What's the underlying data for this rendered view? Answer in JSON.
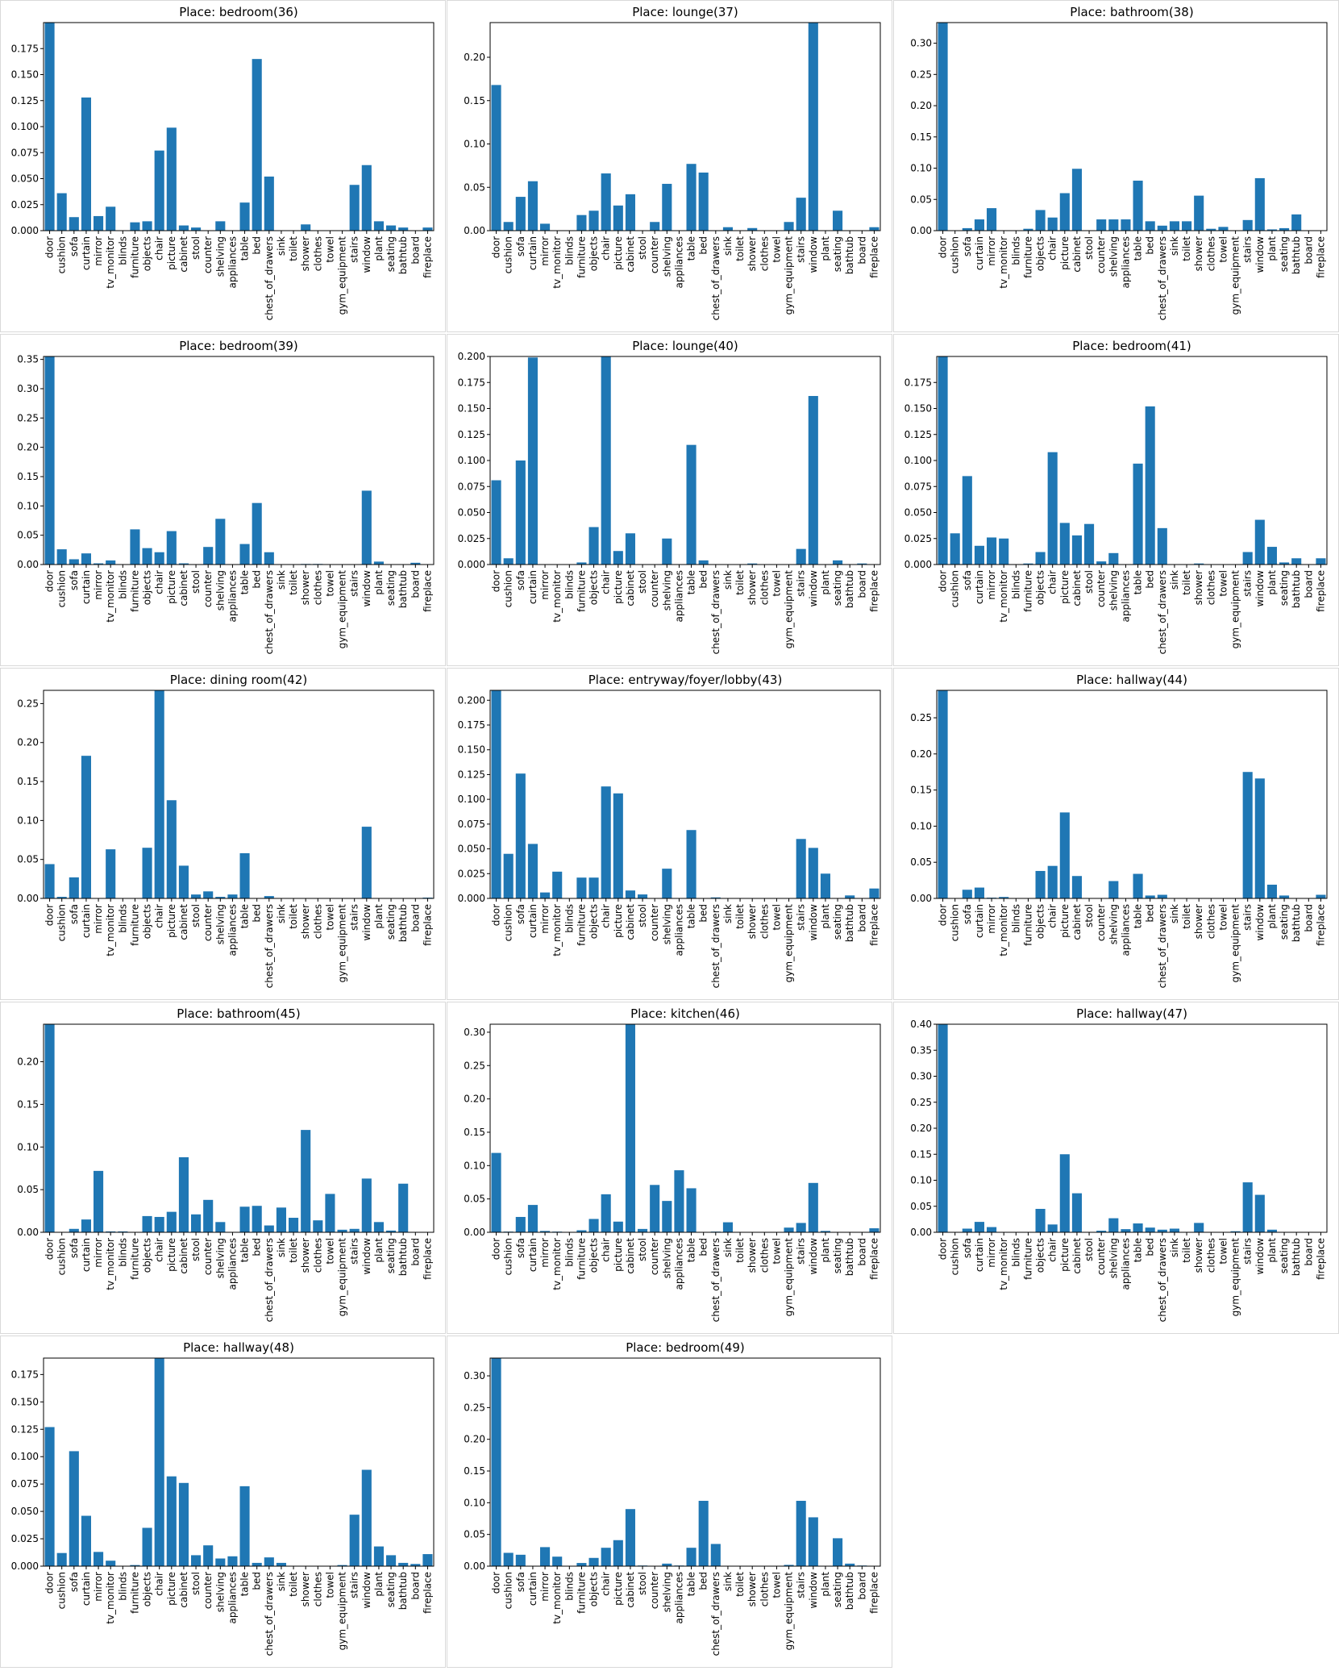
{
  "chart_data": [
    {
      "type": "bar",
      "title": "Place: bedroom(36)",
      "categories": [
        "door",
        "cushion",
        "sofa",
        "curtain",
        "mirror",
        "tv_monitor",
        "blinds",
        "furniture",
        "objects",
        "chair",
        "picture",
        "cabinet",
        "stool",
        "counter",
        "shelving",
        "appliances",
        "table",
        "bed",
        "chest_of_drawers",
        "sink",
        "toilet",
        "shower",
        "clothes",
        "towel",
        "gym_equipment",
        "stairs",
        "window",
        "plant",
        "seating",
        "bathtub",
        "board",
        "fireplace"
      ],
      "values": [
        0.2,
        0.036,
        0.013,
        0.128,
        0.014,
        0.023,
        0,
        0.008,
        0.009,
        0.077,
        0.099,
        0.005,
        0.003,
        0,
        0.009,
        0,
        0.027,
        0.165,
        0.052,
        0,
        0,
        0.006,
        0,
        0,
        0,
        0.044,
        0.063,
        0.009,
        0.005,
        0.003,
        0,
        0.003
      ],
      "yticks": [
        "0.000",
        "0.025",
        "0.050",
        "0.075",
        "0.100",
        "0.125",
        "0.150",
        "0.175"
      ],
      "ylim": [
        0,
        0.2
      ],
      "color": "#1f77b4"
    },
    {
      "type": "bar",
      "title": "Place: lounge(37)",
      "categories": [
        "door",
        "cushion",
        "sofa",
        "curtain",
        "mirror",
        "tv_monitor",
        "blinds",
        "furniture",
        "objects",
        "chair",
        "picture",
        "cabinet",
        "stool",
        "counter",
        "shelving",
        "appliances",
        "table",
        "bed",
        "chest_of_drawers",
        "sink",
        "toilet",
        "shower",
        "clothes",
        "towel",
        "gym_equipment",
        "stairs",
        "window",
        "plant",
        "seating",
        "bathtub",
        "board",
        "fireplace"
      ],
      "values": [
        0.168,
        0.01,
        0.039,
        0.057,
        0.008,
        0,
        0,
        0.018,
        0.023,
        0.066,
        0.029,
        0.042,
        0,
        0.01,
        0.054,
        0,
        0.077,
        0.067,
        0,
        0.004,
        0,
        0.003,
        0,
        0,
        0.01,
        0.038,
        0.24,
        0,
        0.023,
        0,
        0,
        0.004
      ],
      "yticks": [
        "0.00",
        "0.05",
        "0.10",
        "0.15",
        "0.20"
      ],
      "ylim": [
        0,
        0.24
      ],
      "color": "#1f77b4"
    },
    {
      "type": "bar",
      "title": "Place: bathroom(38)",
      "categories": [
        "door",
        "cushion",
        "sofa",
        "curtain",
        "mirror",
        "tv_monitor",
        "blinds",
        "furniture",
        "objects",
        "chair",
        "picture",
        "cabinet",
        "stool",
        "counter",
        "shelving",
        "appliances",
        "table",
        "bed",
        "chest_of_drawers",
        "sink",
        "toilet",
        "shower",
        "clothes",
        "towel",
        "gym_equipment",
        "stairs",
        "window",
        "plant",
        "seating",
        "bathtub",
        "board",
        "fireplace"
      ],
      "values": [
        0.333,
        0,
        0.004,
        0.018,
        0.036,
        0,
        0,
        0.003,
        0.033,
        0.021,
        0.06,
        0.099,
        0,
        0.018,
        0.018,
        0.018,
        0.08,
        0.015,
        0.008,
        0.015,
        0.015,
        0.056,
        0.003,
        0.006,
        0,
        0.017,
        0.084,
        0.002,
        0.004,
        0.026,
        0,
        0
      ],
      "yticks": [
        "0.00",
        "0.05",
        "0.10",
        "0.15",
        "0.20",
        "0.25",
        "0.30"
      ],
      "ylim": [
        0,
        0.333
      ],
      "color": "#1f77b4"
    },
    {
      "type": "bar",
      "title": "Place: bedroom(39)",
      "categories": [
        "door",
        "cushion",
        "sofa",
        "curtain",
        "mirror",
        "tv_monitor",
        "blinds",
        "furniture",
        "objects",
        "chair",
        "picture",
        "cabinet",
        "stool",
        "counter",
        "shelving",
        "appliances",
        "table",
        "bed",
        "chest_of_drawers",
        "sink",
        "toilet",
        "shower",
        "clothes",
        "towel",
        "gym_equipment",
        "stairs",
        "window",
        "plant",
        "seating",
        "bathtub",
        "board",
        "fireplace"
      ],
      "values": [
        0.355,
        0.026,
        0.009,
        0.019,
        0.002,
        0.007,
        0,
        0.06,
        0.028,
        0.021,
        0.057,
        0.002,
        0,
        0.03,
        0.078,
        0,
        0.035,
        0.105,
        0.021,
        0,
        0,
        0.001,
        0.001,
        0,
        0,
        0,
        0.126,
        0.005,
        0,
        0,
        0.003,
        0
      ],
      "yticks": [
        "0.00",
        "0.05",
        "0.10",
        "0.15",
        "0.20",
        "0.25",
        "0.30",
        "0.35"
      ],
      "ylim": [
        0,
        0.355
      ],
      "color": "#1f77b4"
    },
    {
      "type": "bar",
      "title": "Place: lounge(40)",
      "categories": [
        "door",
        "cushion",
        "sofa",
        "curtain",
        "mirror",
        "tv_monitor",
        "blinds",
        "furniture",
        "objects",
        "chair",
        "picture",
        "cabinet",
        "stool",
        "counter",
        "shelving",
        "appliances",
        "table",
        "bed",
        "chest_of_drawers",
        "sink",
        "toilet",
        "shower",
        "clothes",
        "towel",
        "gym_equipment",
        "stairs",
        "window",
        "plant",
        "seating",
        "bathtub",
        "board",
        "fireplace"
      ],
      "values": [
        0.081,
        0.006,
        0.1,
        0.199,
        0,
        0,
        0,
        0.002,
        0.036,
        0.2,
        0.013,
        0.03,
        0,
        0,
        0.025,
        0,
        0.115,
        0.004,
        0,
        0,
        0,
        0.001,
        0,
        0,
        0,
        0.015,
        0.162,
        0,
        0.004,
        0,
        0.001,
        0
      ],
      "yticks": [
        "0.000",
        "0.025",
        "0.050",
        "0.075",
        "0.100",
        "0.125",
        "0.150",
        "0.175",
        "0.200"
      ],
      "ylim": [
        0,
        0.2
      ],
      "color": "#1f77b4"
    },
    {
      "type": "bar",
      "title": "Place: bedroom(41)",
      "categories": [
        "door",
        "cushion",
        "sofa",
        "curtain",
        "mirror",
        "tv_monitor",
        "blinds",
        "furniture",
        "objects",
        "chair",
        "picture",
        "cabinet",
        "stool",
        "counter",
        "shelving",
        "appliances",
        "table",
        "bed",
        "chest_of_drawers",
        "sink",
        "toilet",
        "shower",
        "clothes",
        "towel",
        "gym_equipment",
        "stairs",
        "window",
        "plant",
        "seating",
        "bathtub",
        "board",
        "fireplace"
      ],
      "values": [
        0.2,
        0.03,
        0.085,
        0.018,
        0.026,
        0.025,
        0,
        0.001,
        0.012,
        0.108,
        0.04,
        0.028,
        0.039,
        0.003,
        0.011,
        0,
        0.097,
        0.152,
        0.035,
        0,
        0,
        0.001,
        0,
        0,
        0,
        0.012,
        0.043,
        0.017,
        0.002,
        0.006,
        0,
        0.006
      ],
      "yticks": [
        "0.000",
        "0.025",
        "0.050",
        "0.075",
        "0.100",
        "0.125",
        "0.150",
        "0.175"
      ],
      "ylim": [
        0,
        0.2
      ],
      "color": "#1f77b4"
    },
    {
      "type": "bar",
      "title": "Place: dining room(42)",
      "categories": [
        "door",
        "cushion",
        "sofa",
        "curtain",
        "mirror",
        "tv_monitor",
        "blinds",
        "furniture",
        "objects",
        "chair",
        "picture",
        "cabinet",
        "stool",
        "counter",
        "shelving",
        "appliances",
        "table",
        "bed",
        "chest_of_drawers",
        "sink",
        "toilet",
        "shower",
        "clothes",
        "towel",
        "gym_equipment",
        "stairs",
        "window",
        "plant",
        "seating",
        "bathtub",
        "board",
        "fireplace"
      ],
      "values": [
        0.044,
        0.002,
        0.027,
        0.183,
        0,
        0.063,
        0,
        0,
        0.065,
        0.267,
        0.126,
        0.042,
        0.005,
        0.009,
        0.002,
        0.005,
        0.058,
        0,
        0.003,
        0,
        0,
        0,
        0,
        0,
        0,
        0,
        0.092,
        0,
        0,
        0,
        0,
        0.001
      ],
      "yticks": [
        "0.00",
        "0.05",
        "0.10",
        "0.15",
        "0.20",
        "0.25"
      ],
      "ylim": [
        0,
        0.267
      ],
      "color": "#1f77b4"
    },
    {
      "type": "bar",
      "title": "Place: entryway/foyer/lobby(43)",
      "categories": [
        "door",
        "cushion",
        "sofa",
        "curtain",
        "mirror",
        "tv_monitor",
        "blinds",
        "furniture",
        "objects",
        "chair",
        "picture",
        "cabinet",
        "stool",
        "counter",
        "shelving",
        "appliances",
        "table",
        "bed",
        "chest_of_drawers",
        "sink",
        "toilet",
        "shower",
        "clothes",
        "towel",
        "gym_equipment",
        "stairs",
        "window",
        "plant",
        "seating",
        "bathtub",
        "board",
        "fireplace"
      ],
      "values": [
        0.21,
        0.045,
        0.126,
        0.055,
        0.006,
        0.027,
        0,
        0.021,
        0.021,
        0.113,
        0.106,
        0.008,
        0.004,
        0,
        0.03,
        0,
        0.069,
        0,
        0.001,
        0,
        0,
        0,
        0,
        0,
        0,
        0.06,
        0.051,
        0.025,
        0,
        0.003,
        0,
        0.01
      ],
      "yticks": [
        "0.000",
        "0.025",
        "0.050",
        "0.075",
        "0.100",
        "0.125",
        "0.150",
        "0.175",
        "0.200"
      ],
      "ylim": [
        0,
        0.21
      ],
      "color": "#1f77b4"
    },
    {
      "type": "bar",
      "title": "Place: hallway(44)",
      "categories": [
        "door",
        "cushion",
        "sofa",
        "curtain",
        "mirror",
        "tv_monitor",
        "blinds",
        "furniture",
        "objects",
        "chair",
        "picture",
        "cabinet",
        "stool",
        "counter",
        "shelving",
        "appliances",
        "table",
        "bed",
        "chest_of_drawers",
        "sink",
        "toilet",
        "shower",
        "clothes",
        "towel",
        "gym_equipment",
        "stairs",
        "window",
        "plant",
        "seating",
        "bathtub",
        "board",
        "fireplace"
      ],
      "values": [
        0.288,
        0,
        0.012,
        0.015,
        0.001,
        0.002,
        0,
        0,
        0.038,
        0.045,
        0.119,
        0.031,
        0,
        0,
        0.024,
        0,
        0.034,
        0.004,
        0.005,
        0,
        0,
        0,
        0,
        0,
        0,
        0.175,
        0.166,
        0.019,
        0.004,
        0,
        0,
        0.005
      ],
      "yticks": [
        "0.00",
        "0.05",
        "0.10",
        "0.15",
        "0.20",
        "0.25"
      ],
      "ylim": [
        0,
        0.288
      ],
      "color": "#1f77b4"
    },
    {
      "type": "bar",
      "title": "Place: bathroom(45)",
      "categories": [
        "door",
        "cushion",
        "sofa",
        "curtain",
        "mirror",
        "tv_monitor",
        "blinds",
        "furniture",
        "objects",
        "chair",
        "picture",
        "cabinet",
        "stool",
        "counter",
        "shelving",
        "appliances",
        "table",
        "bed",
        "chest_of_drawers",
        "sink",
        "toilet",
        "shower",
        "clothes",
        "towel",
        "gym_equipment",
        "stairs",
        "window",
        "plant",
        "seating",
        "bathtub",
        "board",
        "fireplace"
      ],
      "values": [
        0.244,
        0,
        0.004,
        0.015,
        0.072,
        0.001,
        0.001,
        0,
        0.019,
        0.018,
        0.024,
        0.088,
        0.021,
        0.038,
        0.012,
        0,
        0.03,
        0.031,
        0.008,
        0.029,
        0.017,
        0.12,
        0.014,
        0.045,
        0.003,
        0.004,
        0.063,
        0.012,
        0.002,
        0.057,
        0,
        0
      ],
      "yticks": [
        "0.00",
        "0.05",
        "0.10",
        "0.15",
        "0.20"
      ],
      "ylim": [
        0,
        0.244
      ],
      "color": "#1f77b4"
    },
    {
      "type": "bar",
      "title": "Place: kitchen(46)",
      "categories": [
        "door",
        "cushion",
        "sofa",
        "curtain",
        "mirror",
        "tv_monitor",
        "blinds",
        "furniture",
        "objects",
        "chair",
        "picture",
        "cabinet",
        "stool",
        "counter",
        "shelving",
        "appliances",
        "table",
        "bed",
        "chest_of_drawers",
        "sink",
        "toilet",
        "shower",
        "clothes",
        "towel",
        "gym_equipment",
        "stairs",
        "window",
        "plant",
        "seating",
        "bathtub",
        "board",
        "fireplace"
      ],
      "values": [
        0.119,
        0.001,
        0.023,
        0.041,
        0.002,
        0.001,
        0,
        0.003,
        0.02,
        0.057,
        0.016,
        0.312,
        0.005,
        0.071,
        0.047,
        0.093,
        0.066,
        0,
        0.001,
        0.015,
        0,
        0,
        0,
        0,
        0.007,
        0.014,
        0.074,
        0.002,
        0,
        0,
        0,
        0.006
      ],
      "yticks": [
        "0.00",
        "0.05",
        "0.10",
        "0.15",
        "0.20",
        "0.25",
        "0.30"
      ],
      "ylim": [
        0,
        0.312
      ],
      "color": "#1f77b4"
    },
    {
      "type": "bar",
      "title": "Place: hallway(47)",
      "categories": [
        "door",
        "cushion",
        "sofa",
        "curtain",
        "mirror",
        "tv_monitor",
        "blinds",
        "furniture",
        "objects",
        "chair",
        "picture",
        "cabinet",
        "stool",
        "counter",
        "shelving",
        "appliances",
        "table",
        "bed",
        "chest_of_drawers",
        "sink",
        "toilet",
        "shower",
        "clothes",
        "towel",
        "gym_equipment",
        "stairs",
        "window",
        "plant",
        "seating",
        "bathtub",
        "board",
        "fireplace"
      ],
      "values": [
        0.4,
        0,
        0.007,
        0.02,
        0.01,
        0,
        0,
        0,
        0.045,
        0.015,
        0.15,
        0.075,
        0,
        0.003,
        0.027,
        0.006,
        0.017,
        0.009,
        0.005,
        0.007,
        0,
        0.018,
        0,
        0,
        0.002,
        0.096,
        0.072,
        0.005,
        0,
        0,
        0,
        0
      ],
      "yticks": [
        "0.00",
        "0.05",
        "0.10",
        "0.15",
        "0.20",
        "0.25",
        "0.30",
        "0.35",
        "0.40"
      ],
      "ylim": [
        0,
        0.4
      ],
      "color": "#1f77b4"
    },
    {
      "type": "bar",
      "title": "Place: hallway(48)",
      "categories": [
        "door",
        "cushion",
        "sofa",
        "curtain",
        "mirror",
        "tv_monitor",
        "blinds",
        "furniture",
        "objects",
        "chair",
        "picture",
        "cabinet",
        "stool",
        "counter",
        "shelving",
        "appliances",
        "table",
        "bed",
        "chest_of_drawers",
        "sink",
        "toilet",
        "shower",
        "clothes",
        "towel",
        "gym_equipment",
        "stairs",
        "window",
        "plant",
        "seating",
        "bathtub",
        "board",
        "fireplace"
      ],
      "values": [
        0.127,
        0.012,
        0.105,
        0.046,
        0.013,
        0.005,
        0,
        0.001,
        0.035,
        0.19,
        0.082,
        0.076,
        0.01,
        0.019,
        0.007,
        0.009,
        0.073,
        0.003,
        0.008,
        0.003,
        0,
        0,
        0,
        0,
        0.001,
        0.047,
        0.088,
        0.018,
        0.01,
        0.003,
        0.002,
        0.011
      ],
      "yticks": [
        "0.000",
        "0.025",
        "0.050",
        "0.075",
        "0.100",
        "0.125",
        "0.150",
        "0.175"
      ],
      "ylim": [
        0,
        0.19
      ],
      "color": "#1f77b4"
    },
    {
      "type": "bar",
      "title": "Place: bedroom(49)",
      "categories": [
        "door",
        "cushion",
        "sofa",
        "curtain",
        "mirror",
        "tv_monitor",
        "blinds",
        "furniture",
        "objects",
        "chair",
        "picture",
        "cabinet",
        "stool",
        "counter",
        "shelving",
        "appliances",
        "table",
        "bed",
        "chest_of_drawers",
        "sink",
        "toilet",
        "shower",
        "clothes",
        "towel",
        "gym_equipment",
        "stairs",
        "window",
        "plant",
        "seating",
        "bathtub",
        "board",
        "fireplace"
      ],
      "values": [
        0.328,
        0.021,
        0.018,
        0,
        0.03,
        0.015,
        0,
        0.005,
        0.013,
        0.029,
        0.041,
        0.09,
        0.001,
        0,
        0.004,
        0.001,
        0.029,
        0.103,
        0.035,
        0,
        0,
        0,
        0,
        0,
        0.002,
        0.103,
        0.077,
        0,
        0.044,
        0.004,
        0.001,
        0
      ],
      "yticks": [
        "0.00",
        "0.05",
        "0.10",
        "0.15",
        "0.20",
        "0.25",
        "0.30"
      ],
      "ylim": [
        0,
        0.328
      ],
      "color": "#1f77b4"
    }
  ]
}
